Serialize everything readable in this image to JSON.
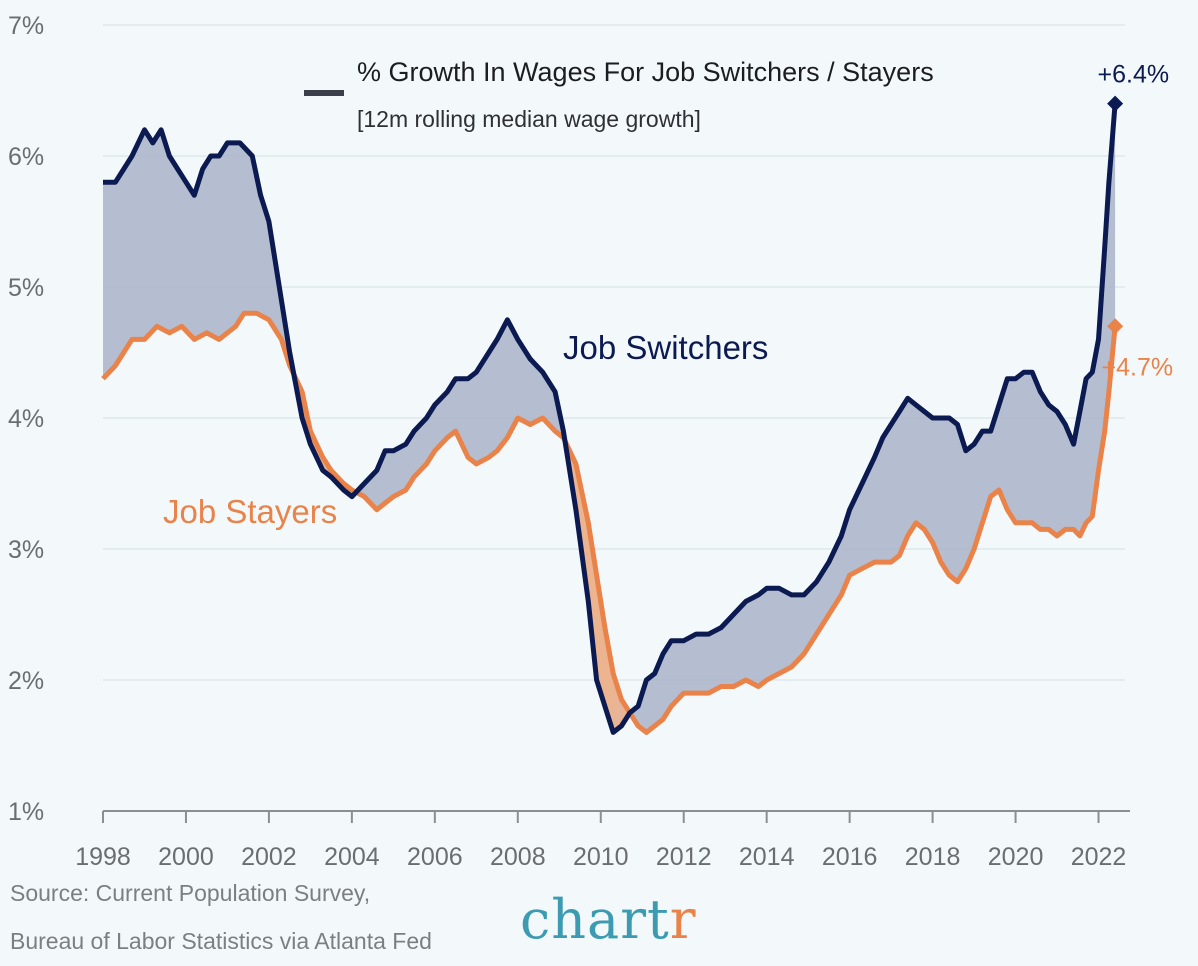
{
  "colors": {
    "switchers": "#0c1a52",
    "stayers": "#e9834a",
    "fill_above": "#a9b4c8",
    "fill_below": "#f0b38c",
    "grid": "#e3ecee",
    "axis": "#8a8f93",
    "brand_main": "#3d9bb1",
    "brand_accent": "#e9834a"
  },
  "footer": {
    "source_line1": "Source: Current Population Survey,",
    "source_line2": "Bureau of Labor Statistics via Atlanta Fed",
    "brand_text": "chart",
    "brand_accent_text": "r"
  },
  "chart_data": {
    "type": "line",
    "title": "% Growth In Wages For Job Switchers / Stayers",
    "subtitle": "[12m rolling median wage growth]",
    "xlabel": "",
    "ylabel": "",
    "xlim": [
      1998,
      2023
    ],
    "ylim": [
      1,
      7
    ],
    "y_ticks": [
      1,
      2,
      3,
      4,
      5,
      6,
      7
    ],
    "y_tick_labels": [
      "1%",
      "2%",
      "3%",
      "4%",
      "5%",
      "6%",
      "7%"
    ],
    "x_ticks": [
      1998,
      2000,
      2002,
      2004,
      2006,
      2008,
      2010,
      2012,
      2014,
      2016,
      2018,
      2020,
      2022
    ],
    "x_tick_labels": [
      "1998",
      "2000",
      "2002",
      "2004",
      "2006",
      "2008",
      "2010",
      "2012",
      "2014",
      "2016",
      "2018",
      "2020",
      "2022"
    ],
    "grid": true,
    "series": [
      {
        "name": "Job Switchers",
        "end_label": "+6.4%",
        "x": [
          1998.0,
          1998.3,
          1998.5,
          1998.7,
          1999.0,
          1999.2,
          1999.4,
          1999.6,
          1999.8,
          2000.0,
          2000.2,
          2000.4,
          2000.6,
          2000.8,
          2001.0,
          2001.3,
          2001.6,
          2001.8,
          2002.0,
          2002.3,
          2002.5,
          2002.8,
          2003.0,
          2003.3,
          2003.5,
          2003.8,
          2004.0,
          2004.3,
          2004.6,
          2004.8,
          2005.0,
          2005.3,
          2005.5,
          2005.8,
          2006.0,
          2006.3,
          2006.5,
          2006.8,
          2007.0,
          2007.3,
          2007.5,
          2007.75,
          2008.0,
          2008.3,
          2008.6,
          2008.9,
          2009.1,
          2009.4,
          2009.7,
          2009.9,
          2010.1,
          2010.3,
          2010.5,
          2010.7,
          2010.9,
          2011.1,
          2011.3,
          2011.5,
          2011.7,
          2012.0,
          2012.3,
          2012.6,
          2012.9,
          2013.2,
          2013.5,
          2013.8,
          2014.0,
          2014.3,
          2014.6,
          2014.9,
          2015.2,
          2015.5,
          2015.8,
          2016.0,
          2016.3,
          2016.6,
          2016.8,
          2017.0,
          2017.2,
          2017.4,
          2017.6,
          2017.8,
          2018.0,
          2018.2,
          2018.4,
          2018.6,
          2018.8,
          2019.0,
          2019.2,
          2019.4,
          2019.6,
          2019.8,
          2020.0,
          2020.2,
          2020.4,
          2020.6,
          2020.8,
          2021.0,
          2021.2,
          2021.4,
          2021.55,
          2021.7,
          2021.85,
          2022.0,
          2022.15,
          2022.25,
          2022.4
        ],
        "values": [
          5.8,
          5.8,
          5.9,
          6.0,
          6.2,
          6.1,
          6.2,
          6.0,
          5.9,
          5.8,
          5.7,
          5.9,
          6.0,
          6.0,
          6.1,
          6.1,
          6.0,
          5.7,
          5.5,
          4.9,
          4.5,
          4.0,
          3.8,
          3.6,
          3.55,
          3.45,
          3.4,
          3.5,
          3.6,
          3.75,
          3.75,
          3.8,
          3.9,
          4.0,
          4.1,
          4.2,
          4.3,
          4.3,
          4.35,
          4.5,
          4.6,
          4.75,
          4.6,
          4.45,
          4.35,
          4.2,
          3.9,
          3.3,
          2.6,
          2.0,
          1.8,
          1.6,
          1.65,
          1.75,
          1.8,
          2.0,
          2.05,
          2.2,
          2.3,
          2.3,
          2.35,
          2.35,
          2.4,
          2.5,
          2.6,
          2.65,
          2.7,
          2.7,
          2.65,
          2.65,
          2.75,
          2.9,
          3.1,
          3.3,
          3.5,
          3.7,
          3.85,
          3.95,
          4.05,
          4.15,
          4.1,
          4.05,
          4.0,
          4.0,
          4.0,
          3.95,
          3.75,
          3.8,
          3.9,
          3.9,
          4.1,
          4.3,
          4.3,
          4.35,
          4.35,
          4.2,
          4.1,
          4.05,
          3.95,
          3.8,
          4.05,
          4.3,
          4.35,
          4.6,
          5.3,
          5.8,
          6.4
        ]
      },
      {
        "name": "Job Stayers",
        "end_label": "+4.7%",
        "x": [
          1998.0,
          1998.3,
          1998.5,
          1998.7,
          1999.0,
          1999.3,
          1999.6,
          1999.9,
          2000.2,
          2000.5,
          2000.8,
          2001.0,
          2001.2,
          2001.4,
          2001.7,
          2002.0,
          2002.3,
          2002.5,
          2002.8,
          2003.0,
          2003.3,
          2003.5,
          2003.8,
          2004.0,
          2004.3,
          2004.6,
          2004.8,
          2005.0,
          2005.3,
          2005.5,
          2005.8,
          2006.0,
          2006.3,
          2006.5,
          2006.8,
          2007.0,
          2007.3,
          2007.5,
          2007.75,
          2008.0,
          2008.3,
          2008.6,
          2008.9,
          2009.1,
          2009.4,
          2009.7,
          2009.9,
          2010.1,
          2010.3,
          2010.5,
          2010.7,
          2010.9,
          2011.1,
          2011.3,
          2011.5,
          2011.7,
          2012.0,
          2012.3,
          2012.6,
          2012.9,
          2013.2,
          2013.5,
          2013.8,
          2014.0,
          2014.3,
          2014.6,
          2014.9,
          2015.2,
          2015.5,
          2015.8,
          2016.0,
          2016.3,
          2016.6,
          2016.8,
          2017.0,
          2017.2,
          2017.4,
          2017.6,
          2017.8,
          2018.0,
          2018.2,
          2018.4,
          2018.6,
          2018.8,
          2019.0,
          2019.2,
          2019.4,
          2019.6,
          2019.8,
          2020.0,
          2020.2,
          2020.4,
          2020.6,
          2020.8,
          2021.0,
          2021.2,
          2021.4,
          2021.55,
          2021.7,
          2021.85,
          2022.0,
          2022.15,
          2022.25,
          2022.4
        ],
        "values": [
          4.3,
          4.4,
          4.5,
          4.6,
          4.6,
          4.7,
          4.65,
          4.7,
          4.6,
          4.65,
          4.6,
          4.65,
          4.7,
          4.8,
          4.8,
          4.75,
          4.6,
          4.4,
          4.2,
          3.9,
          3.7,
          3.6,
          3.5,
          3.45,
          3.4,
          3.3,
          3.35,
          3.4,
          3.45,
          3.55,
          3.65,
          3.75,
          3.85,
          3.9,
          3.7,
          3.65,
          3.7,
          3.75,
          3.85,
          4.0,
          3.95,
          4.0,
          3.9,
          3.85,
          3.65,
          3.2,
          2.8,
          2.4,
          2.05,
          1.85,
          1.75,
          1.65,
          1.6,
          1.65,
          1.7,
          1.8,
          1.9,
          1.9,
          1.9,
          1.95,
          1.95,
          2.0,
          1.95,
          2.0,
          2.05,
          2.1,
          2.2,
          2.35,
          2.5,
          2.65,
          2.8,
          2.85,
          2.9,
          2.9,
          2.9,
          2.95,
          3.1,
          3.2,
          3.15,
          3.05,
          2.9,
          2.8,
          2.75,
          2.85,
          3.0,
          3.2,
          3.4,
          3.45,
          3.3,
          3.2,
          3.2,
          3.2,
          3.15,
          3.15,
          3.1,
          3.15,
          3.15,
          3.1,
          3.2,
          3.25,
          3.6,
          3.9,
          4.2,
          4.7
        ]
      }
    ]
  }
}
